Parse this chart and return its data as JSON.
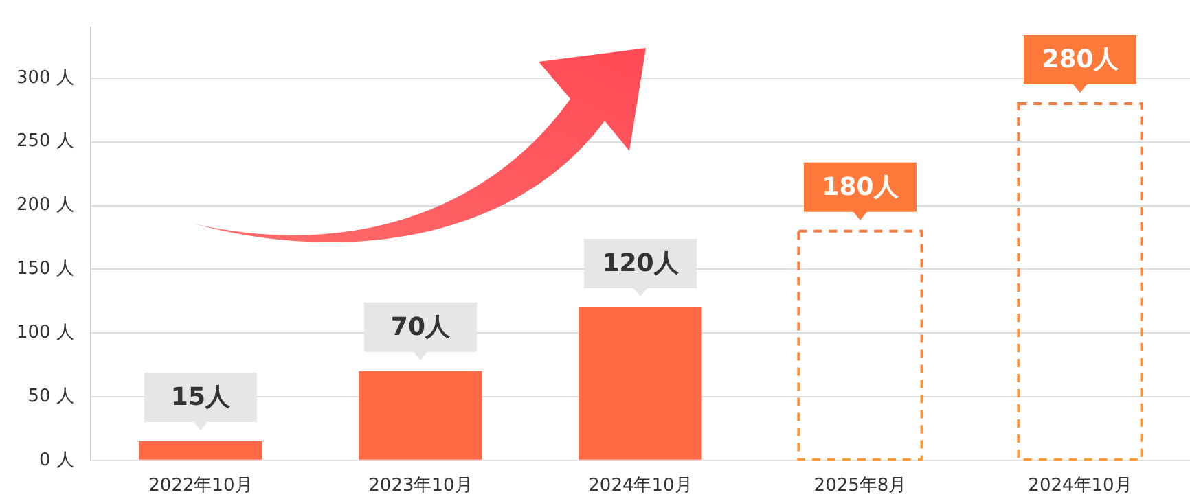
{
  "chart_data": {
    "type": "bar",
    "categories": [
      "2022年10月",
      "2023年10月",
      "2024年10月",
      "2025年8月",
      "2024年10月"
    ],
    "stacked": true,
    "series": [
      {
        "color": "#ff6a45",
        "values": [
          15,
          70,
          120,
          null,
          null
        ],
        "value_labels": [
          "15人",
          "70人",
          "120人",
          null,
          null
        ]
      },
      {
        "color": "#ff7a3a",
        "line_style": "dashed",
        "values": [
          null,
          null,
          null,
          180,
          280
        ],
        "value_labels": [
          null,
          null,
          null,
          "180人",
          "280人"
        ]
      }
    ],
    "ylim": [
      0,
      340
    ],
    "yticks": [
      {
        "value": 0,
        "label": "0 人"
      },
      {
        "value": 50,
        "label": "50 人"
      },
      {
        "value": 100,
        "label": "100 人"
      },
      {
        "value": 150,
        "label": "150 人"
      },
      {
        "value": 200,
        "label": "200 人"
      },
      {
        "value": 250,
        "label": "250 人"
      },
      {
        "value": 300,
        "label": "300 人"
      }
    ],
    "grid": "y",
    "legend": false
  }
}
